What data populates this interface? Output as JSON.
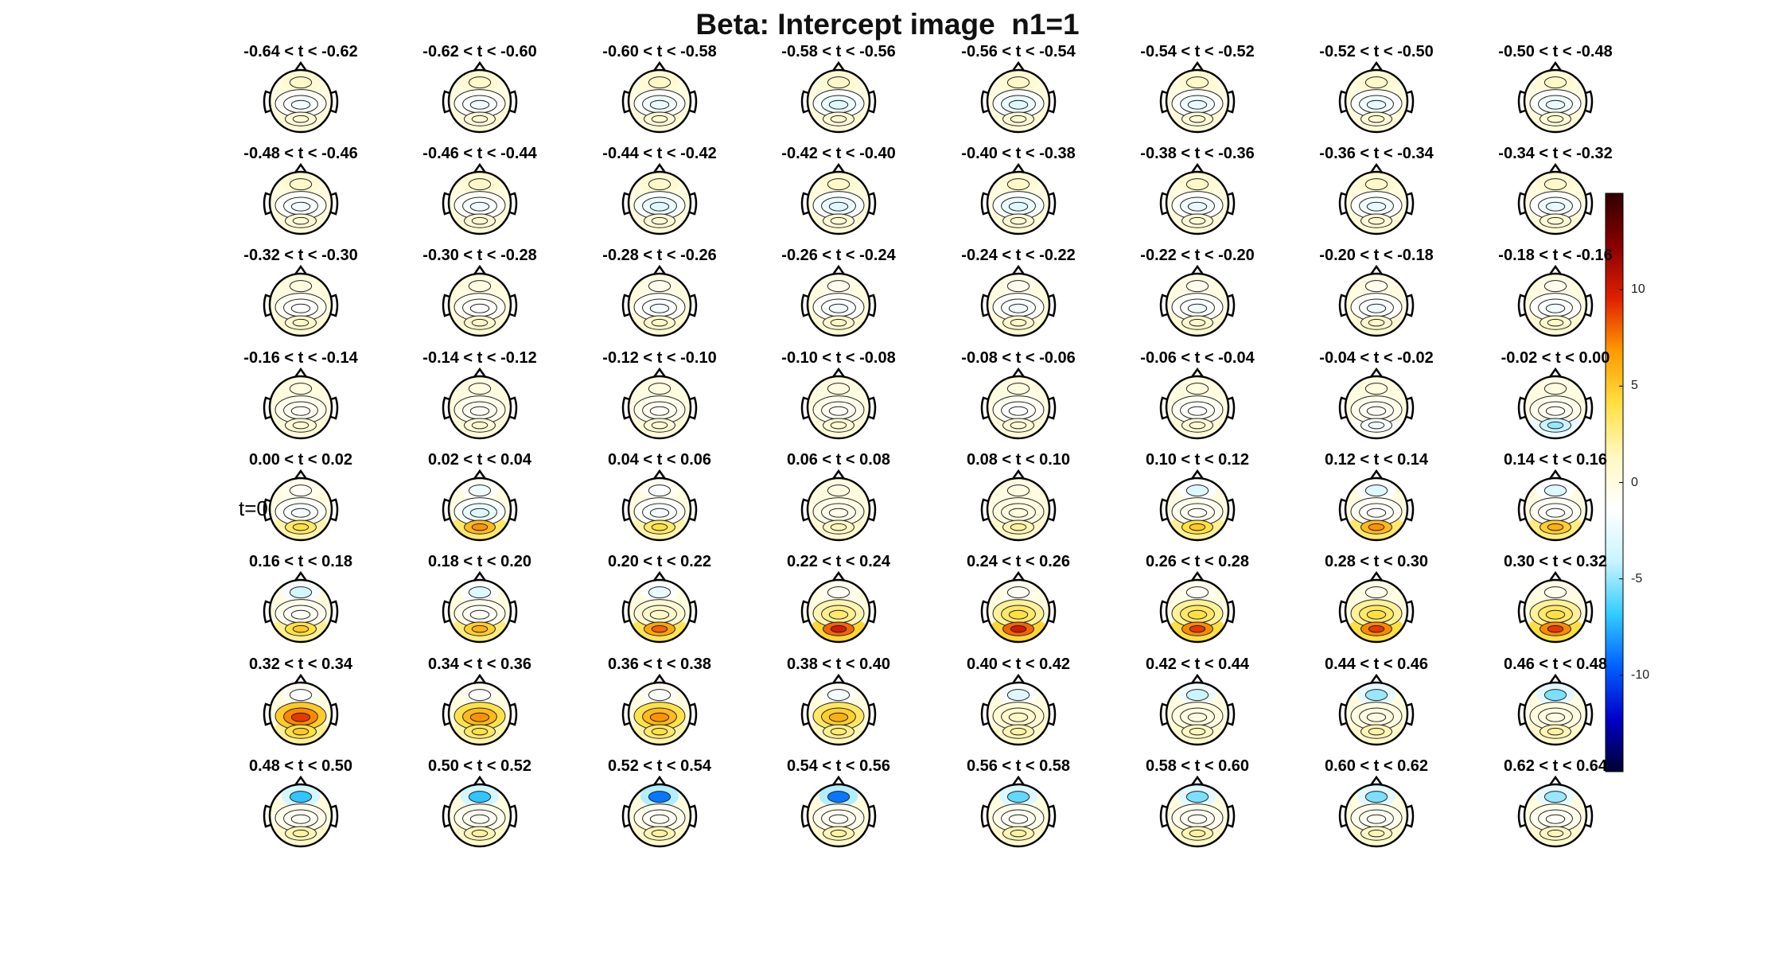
{
  "figure": {
    "title": "Beta: Intercept image  n1=1",
    "side_marker": "t=0"
  },
  "chart_data": {
    "type": "heatmap",
    "subtype": "scalp-topography-grid",
    "title": "Beta: Intercept image  n1=1",
    "grid": {
      "rows": 8,
      "cols": 8
    },
    "panel_labels": [
      "-0.64 < t < -0.62",
      "-0.62 < t < -0.60",
      "-0.60 < t < -0.58",
      "-0.58 < t < -0.56",
      "-0.56 < t < -0.54",
      "-0.54 < t < -0.52",
      "-0.52 < t < -0.50",
      "-0.50 < t < -0.48",
      "-0.48 < t < -0.46",
      "-0.46 < t < -0.44",
      "-0.44 < t < -0.42",
      "-0.42 < t < -0.40",
      "-0.40 < t < -0.38",
      "-0.38 < t < -0.36",
      "-0.36 < t < -0.34",
      "-0.34 < t < -0.32",
      "-0.32 < t < -0.30",
      "-0.30 < t < -0.28",
      "-0.28 < t < -0.26",
      "-0.26 < t < -0.24",
      "-0.24 < t < -0.22",
      "-0.22 < t < -0.20",
      "-0.20 < t < -0.18",
      "-0.18 < t < -0.16",
      "-0.16 < t < -0.14",
      "-0.14 < t < -0.12",
      "-0.12 < t < -0.10",
      "-0.10 < t < -0.08",
      "-0.08 < t < -0.06",
      "-0.06 < t < -0.04",
      "-0.04 < t < -0.02",
      "-0.02 < t < 0.00",
      "0.00 < t < 0.02",
      "0.02 < t < 0.04",
      "0.04 < t < 0.06",
      "0.06 < t < 0.08",
      "0.08 < t < 0.10",
      "0.10 < t < 0.12",
      "0.12 < t < 0.14",
      "0.14 < t < 0.16",
      "0.16 < t < 0.18",
      "0.18 < t < 0.20",
      "0.20 < t < 0.22",
      "0.22 < t < 0.24",
      "0.24 < t < 0.26",
      "0.26 < t < 0.28",
      "0.28 < t < 0.30",
      "0.30 < t < 0.32",
      "0.32 < t < 0.34",
      "0.34 < t < 0.36",
      "0.36 < t < 0.38",
      "0.38 < t < 0.40",
      "0.40 < t < 0.42",
      "0.42 < t < 0.44",
      "0.44 < t < 0.46",
      "0.46 < t < 0.48",
      "0.48 < t < 0.50",
      "0.50 < t < 0.52",
      "0.52 < t < 0.54",
      "0.54 < t < 0.56",
      "0.56 < t < 0.58",
      "0.58 < t < 0.60",
      "0.60 < t < 0.62",
      "0.62 < t < 0.64"
    ],
    "frontal_value": [
      1,
      1,
      1,
      1,
      1,
      1,
      1,
      1,
      1,
      1,
      1,
      1,
      1,
      1,
      1,
      1,
      0,
      0,
      -0.5,
      -0.5,
      -0.5,
      -0.5,
      -0.5,
      -0.5,
      0,
      0,
      0,
      0,
      0,
      0,
      0,
      0,
      -1,
      -2,
      -1.5,
      0,
      0,
      -3,
      -3,
      -3,
      -3.5,
      -3,
      -2.5,
      -1,
      -1,
      -1,
      -0.5,
      -0.5,
      -1.5,
      -1.5,
      -1.5,
      -2,
      -3,
      -4,
      -5,
      -5.5,
      -7,
      -7,
      -9,
      -9,
      -6,
      -5.5,
      -5.5,
      -5
    ],
    "central_value": [
      -2,
      -2,
      -2.5,
      -3,
      -3,
      -2.5,
      -2.5,
      -2.5,
      -2,
      -2,
      -3,
      -3,
      -3,
      -2.5,
      -2.5,
      -2.5,
      -1.5,
      -1.5,
      -2,
      -2,
      -2,
      -2,
      -2,
      -2,
      -1,
      -1,
      -1,
      -1,
      -1.5,
      -1.5,
      -1,
      -1,
      -2,
      -3,
      -2,
      -0.5,
      0,
      -1,
      -1.5,
      -1.5,
      -1,
      -1,
      1,
      3,
      4,
      4,
      4,
      4,
      9,
      7,
      7,
      6,
      1,
      0,
      0,
      0,
      -1,
      -1,
      -1,
      -1,
      -1,
      -1,
      -1,
      -1
    ],
    "posterior_value": [
      0.5,
      0.5,
      0.5,
      0.5,
      0.5,
      0.5,
      0.5,
      0.5,
      0.5,
      0.5,
      0.5,
      0.5,
      0.5,
      0.5,
      0.5,
      0.5,
      1,
      1,
      1,
      1,
      1,
      1,
      1,
      1,
      0.5,
      0.5,
      0.5,
      0.5,
      0.5,
      0.5,
      -2,
      -5,
      4,
      7,
      4,
      1.5,
      2,
      5,
      7,
      6,
      5,
      6,
      8,
      10,
      10,
      9,
      9,
      9,
      5,
      4,
      4,
      3,
      2,
      1.5,
      2,
      2,
      2,
      2,
      2,
      2,
      2,
      2,
      1.5,
      1.5
    ],
    "colorbar": {
      "range": [
        -15,
        15
      ],
      "ticks": [
        10,
        5,
        0,
        -5,
        -10
      ],
      "tick_labels": [
        "10",
        "5",
        "0",
        "-5",
        "-10"
      ],
      "colormap": [
        "#000030",
        "#0000c8",
        "#0060ff",
        "#33ccff",
        "#c8f4ff",
        "#ffffff",
        "#fff8c0",
        "#ffe040",
        "#ff9a00",
        "#e02000",
        "#8a0000",
        "#300000"
      ]
    }
  }
}
